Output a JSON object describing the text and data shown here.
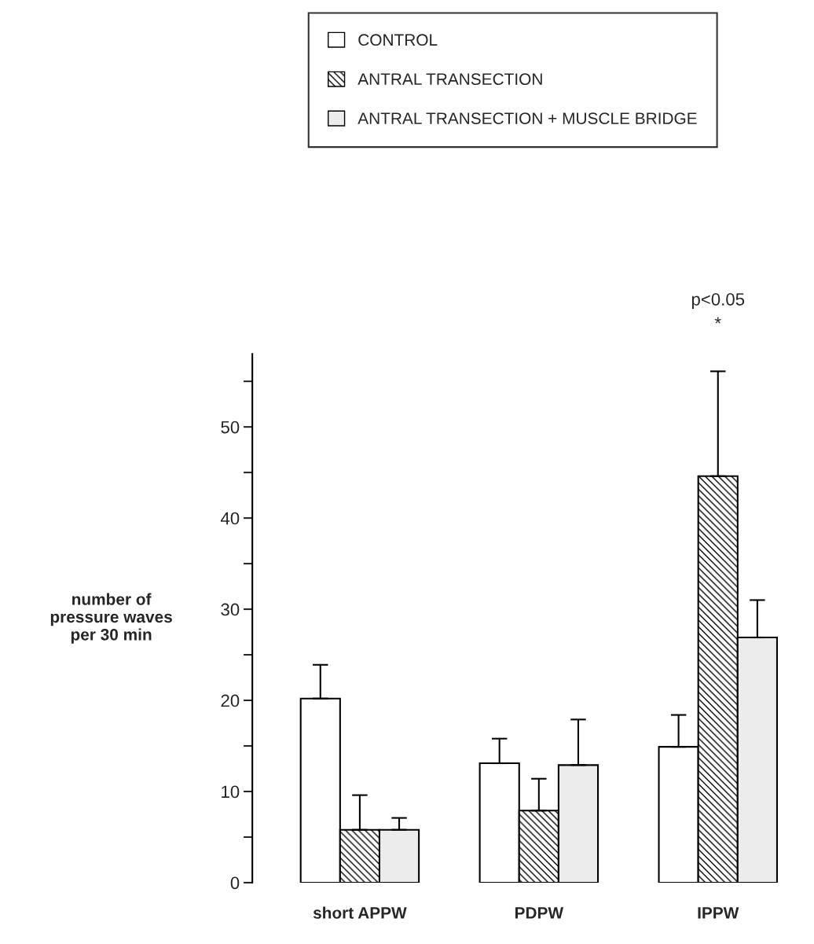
{
  "chart_data": {
    "type": "bar",
    "categories": [
      "short APPW",
      "PDPW",
      "IPPW"
    ],
    "ylabel": "number of\npressure waves\nper 30 min",
    "series": [
      {
        "name": "CONTROL",
        "color": "#ffffff",
        "values": [
          20.2,
          13.1,
          14.9
        ],
        "errors": [
          [
            20.2,
            23.9
          ],
          [
            13.1,
            15.8
          ],
          [
            14.9,
            18.4
          ]
        ]
      },
      {
        "name": "ANTRAL TRANSECTION",
        "color": "#000000",
        "values": [
          5.8,
          7.9,
          44.6
        ],
        "errors": [
          [
            5.8,
            9.6
          ],
          [
            7.9,
            11.4
          ],
          [
            44.6,
            56.1
          ]
        ]
      },
      {
        "name": "ANTRAL TRANSECTION + MUSCLE BRIDGE",
        "color": "#ececec",
        "values": [
          5.8,
          12.9,
          26.9
        ],
        "errors": [
          [
            5.8,
            7.1
          ],
          [
            12.9,
            17.9
          ],
          [
            26.9,
            31.0
          ]
        ]
      }
    ],
    "ylim": [
      0,
      58
    ],
    "yticks": [
      0,
      10,
      20,
      30,
      40,
      50
    ],
    "annotations": [
      "p<0.05\n*"
    ],
    "legend": "top",
    "grid": false
  }
}
